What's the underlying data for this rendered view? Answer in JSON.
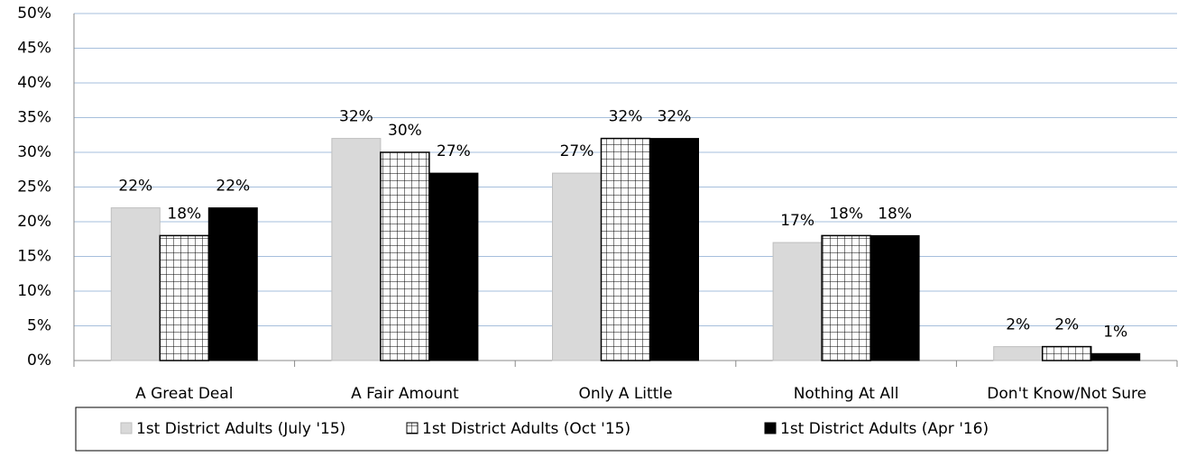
{
  "chart_data": {
    "type": "bar",
    "categories": [
      "A Great Deal",
      "A Fair Amount",
      "Only A Little",
      "Nothing At All",
      "Don't Know/Not Sure"
    ],
    "series": [
      {
        "name": "1st District Adults (July '15)",
        "color": "#d9d9d9",
        "values": [
          22,
          32,
          27,
          17,
          2
        ],
        "value_labels": [
          "22%",
          "32%",
          "27%",
          "17%",
          "2%"
        ]
      },
      {
        "name": "1st District Adults (Oct '15)",
        "color": "#ffffff",
        "pattern": "grid",
        "values": [
          18,
          30,
          32,
          18,
          2
        ],
        "value_labels": [
          "18%",
          "30%",
          "32%",
          "18%",
          "2%"
        ]
      },
      {
        "name": "1st District Adults (Apr '16)",
        "color": "#000000",
        "values": [
          22,
          27,
          32,
          18,
          1
        ],
        "value_labels": [
          "22%",
          "27%",
          "32%",
          "18%",
          "1%"
        ]
      }
    ],
    "ylim": [
      0,
      50
    ],
    "yticks": [
      {
        "value": 0,
        "label": "0%"
      },
      {
        "value": 5,
        "label": "5%"
      },
      {
        "value": 10,
        "label": "10%"
      },
      {
        "value": 15,
        "label": "15%"
      },
      {
        "value": 20,
        "label": "20%"
      },
      {
        "value": 25,
        "label": "25%"
      },
      {
        "value": 30,
        "label": "30%"
      },
      {
        "value": 35,
        "label": "35%"
      },
      {
        "value": 40,
        "label": "40%"
      },
      {
        "value": 45,
        "label": "45%"
      },
      {
        "value": 50,
        "label": "50%"
      }
    ],
    "grid": true,
    "legend": "bottom"
  }
}
